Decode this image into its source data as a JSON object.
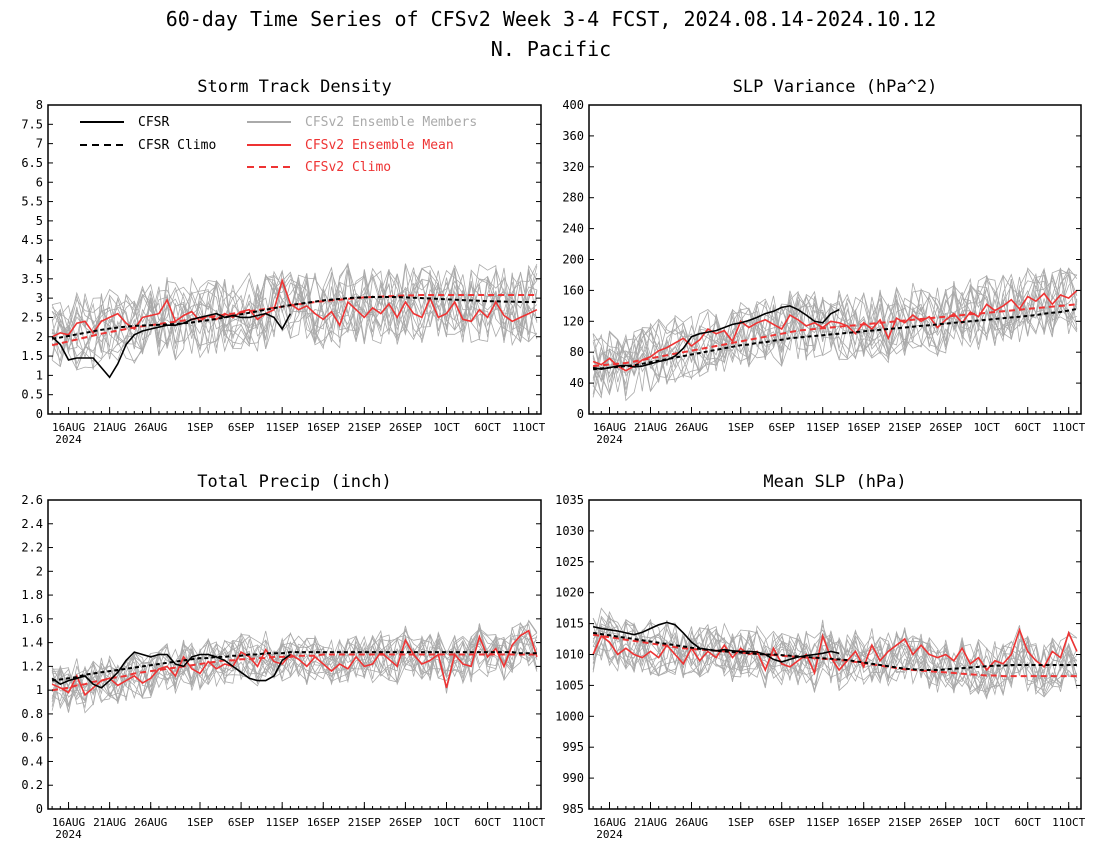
{
  "figure": {
    "title_line1": "60-day Time Series of CFSv2 Week 3-4 FCST, 2024.08.14-2024.10.12",
    "title_line2": "N. Pacific"
  },
  "legend": {
    "cfsr": "CFSR",
    "cfsr_climo": "CFSR Climo",
    "members": "CFSv2 Ensemble Members",
    "ens_mean": "CFSv2 Ensemble Mean",
    "cfsv2_climo": "CFSv2 Climo"
  },
  "colors": {
    "cfsr": "#000000",
    "members": "#aaaaaa",
    "ens_mean": "#ee3333",
    "cfsv2_climo": "#ee3333"
  },
  "x_axis": {
    "labels": [
      "16AUG",
      "21AUG",
      "26AUG",
      "1SEP",
      "6SEP",
      "11SEP",
      "16SEP",
      "21SEP",
      "26SEP",
      "1OCT",
      "6OCT",
      "11OCT"
    ],
    "label_days": [
      2,
      7,
      12,
      18,
      23,
      28,
      33,
      38,
      43,
      48,
      53,
      58
    ],
    "year": "2024",
    "start_date": "2024-08-14",
    "end_date": "2024-10-12"
  },
  "chart_data": [
    {
      "type": "line",
      "title": "Storm Track Density",
      "ylim": [
        0,
        8
      ],
      "yticks": [
        "0",
        "0.5",
        "1",
        "1.5",
        "2",
        "2.5",
        "3",
        "3.5",
        "4",
        "4.5",
        "5",
        "5.5",
        "6",
        "6.5",
        "7",
        "7.5",
        "8"
      ],
      "ytick_values": [
        0,
        0.5,
        1,
        1.5,
        2,
        2.5,
        3,
        3.5,
        4,
        4.5,
        5,
        5.5,
        6,
        6.5,
        7,
        7.5,
        8
      ],
      "cfsr": [
        2.0,
        1.8,
        1.4,
        1.45,
        1.45,
        1.45,
        1.2,
        0.95,
        1.3,
        1.8,
        2.05,
        2.15,
        2.2,
        2.25,
        2.3,
        2.3,
        2.35,
        2.45,
        2.5,
        2.55,
        2.6,
        2.5,
        2.55,
        2.5,
        2.5,
        2.55,
        2.6,
        2.5,
        2.2,
        2.6
      ],
      "cfsr_climo": [
        1.95,
        1.98,
        2.02,
        2.06,
        2.1,
        2.14,
        2.18,
        2.21,
        2.24,
        2.26,
        2.28,
        2.29,
        2.3,
        2.31,
        2.32,
        2.33,
        2.35,
        2.37,
        2.4,
        2.43,
        2.46,
        2.5,
        2.54,
        2.58,
        2.62,
        2.66,
        2.7,
        2.74,
        2.78,
        2.82,
        2.85,
        2.88,
        2.91,
        2.94,
        2.96,
        2.98,
        3.0,
        3.01,
        3.02,
        3.03,
        3.03,
        3.03,
        3.03,
        3.02,
        3.01,
        3.0,
        2.99,
        2.98,
        2.97,
        2.96,
        2.95,
        2.94,
        2.93,
        2.92,
        2.92,
        2.91,
        2.91,
        2.9,
        2.9,
        2.9
      ],
      "cfsv2_climo": [
        1.78,
        1.83,
        1.88,
        1.93,
        1.98,
        2.03,
        2.08,
        2.12,
        2.16,
        2.2,
        2.24,
        2.27,
        2.3,
        2.33,
        2.36,
        2.39,
        2.42,
        2.45,
        2.48,
        2.51,
        2.54,
        2.57,
        2.6,
        2.63,
        2.66,
        2.69,
        2.72,
        2.75,
        2.78,
        2.81,
        2.84,
        2.87,
        2.9,
        2.92,
        2.94,
        2.96,
        2.98,
        3.0,
        3.02,
        3.03,
        3.04,
        3.05,
        3.06,
        3.07,
        3.07,
        3.08,
        3.08,
        3.08,
        3.08,
        3.08,
        3.08,
        3.08,
        3.08,
        3.08,
        3.08,
        3.08,
        3.08,
        3.08,
        3.08,
        3.08
      ],
      "ens_mean": [
        2.0,
        2.1,
        2.05,
        2.35,
        2.4,
        2.1,
        2.4,
        2.5,
        2.6,
        2.35,
        2.2,
        2.5,
        2.55,
        2.6,
        2.95,
        2.4,
        2.55,
        2.65,
        2.4,
        2.55,
        2.45,
        2.6,
        2.5,
        2.65,
        2.7,
        2.45,
        2.6,
        2.7,
        3.45,
        2.85,
        2.7,
        2.8,
        2.6,
        2.45,
        2.65,
        2.3,
        2.9,
        2.7,
        2.5,
        2.75,
        2.6,
        2.85,
        2.5,
        2.9,
        2.6,
        2.5,
        3.0,
        2.5,
        2.6,
        2.9,
        2.45,
        2.4,
        2.7,
        2.5,
        2.9,
        2.55,
        2.4,
        2.5,
        2.6,
        2.7
      ],
      "members_spread": 1.0
    },
    {
      "type": "line",
      "title": "SLP Variance (hPa^2)",
      "ylim": [
        0,
        400
      ],
      "yticks": [
        "0",
        "40",
        "80",
        "120",
        "160",
        "200",
        "240",
        "280",
        "320",
        "360",
        "400"
      ],
      "ytick_values": [
        0,
        40,
        80,
        120,
        160,
        200,
        240,
        280,
        320,
        360,
        400
      ],
      "cfsr": [
        60,
        58,
        60,
        62,
        63,
        61,
        62,
        65,
        68,
        70,
        75,
        85,
        100,
        104,
        106,
        108,
        112,
        116,
        118,
        121,
        125,
        130,
        133,
        138,
        140,
        135,
        128,
        120,
        118,
        130,
        135
      ],
      "cfsr_climo": [
        58,
        59,
        60,
        61,
        62,
        63,
        65,
        67,
        69,
        71,
        73,
        75,
        77,
        79,
        81,
        83,
        85,
        87,
        89,
        90,
        92,
        93,
        95,
        96,
        98,
        99,
        100,
        101,
        102,
        103,
        104,
        105,
        106,
        107,
        108,
        109,
        110,
        111,
        112,
        113,
        114,
        115,
        116,
        117,
        118,
        119,
        120,
        121,
        122,
        123,
        124,
        125,
        126,
        127,
        128,
        130,
        131,
        132,
        134,
        136
      ],
      "cfsv2_climo": [
        62,
        63,
        64,
        65,
        66,
        68,
        70,
        72,
        74,
        76,
        78,
        80,
        82,
        84,
        86,
        88,
        90,
        92,
        94,
        96,
        98,
        100,
        102,
        104,
        106,
        108,
        109,
        110,
        111,
        112,
        113,
        114,
        115,
        116,
        117,
        118,
        119,
        120,
        121,
        122,
        123,
        124,
        125,
        126,
        127,
        128,
        129,
        130,
        131,
        132,
        133,
        134,
        135,
        136,
        137,
        138,
        139,
        140,
        141,
        142
      ],
      "ens_mean": [
        68,
        64,
        72,
        62,
        56,
        62,
        70,
        74,
        82,
        86,
        92,
        98,
        88,
        96,
        110,
        104,
        108,
        94,
        120,
        112,
        118,
        122,
        116,
        110,
        128,
        122,
        114,
        118,
        112,
        120,
        118,
        114,
        104,
        118,
        110,
        122,
        98,
        124,
        118,
        128,
        120,
        126,
        112,
        122,
        130,
        118,
        132,
        126,
        142,
        134,
        140,
        148,
        136,
        152,
        146,
        156,
        142,
        154,
        150,
        160
      ],
      "members_spread": 45
    },
    {
      "type": "line",
      "title": "Total Precip (inch)",
      "ylim": [
        0,
        2.6
      ],
      "yticks": [
        "0",
        "0.2",
        "0.4",
        "0.6",
        "0.8",
        "1",
        "1.2",
        "1.4",
        "1.6",
        "1.8",
        "2",
        "2.2",
        "2.4",
        "2.6"
      ],
      "ytick_values": [
        0,
        0.2,
        0.4,
        0.6,
        0.8,
        1.0,
        1.2,
        1.4,
        1.6,
        1.8,
        2.0,
        2.2,
        2.4,
        2.6
      ],
      "cfsr": [
        1.1,
        1.05,
        1.08,
        1.1,
        1.12,
        1.05,
        1.02,
        1.08,
        1.15,
        1.25,
        1.32,
        1.3,
        1.28,
        1.3,
        1.3,
        1.22,
        1.2,
        1.28,
        1.3,
        1.3,
        1.28,
        1.25,
        1.2,
        1.15,
        1.1,
        1.08,
        1.08,
        1.12,
        1.25,
        1.3
      ],
      "cfsr_climo": [
        1.08,
        1.09,
        1.1,
        1.11,
        1.13,
        1.14,
        1.15,
        1.16,
        1.17,
        1.18,
        1.19,
        1.2,
        1.21,
        1.22,
        1.23,
        1.24,
        1.25,
        1.26,
        1.27,
        1.27,
        1.28,
        1.28,
        1.29,
        1.29,
        1.3,
        1.3,
        1.31,
        1.31,
        1.31,
        1.32,
        1.32,
        1.32,
        1.32,
        1.32,
        1.32,
        1.32,
        1.32,
        1.32,
        1.32,
        1.32,
        1.32,
        1.32,
        1.32,
        1.32,
        1.32,
        1.32,
        1.32,
        1.32,
        1.32,
        1.32,
        1.32,
        1.32,
        1.32,
        1.32,
        1.32,
        1.32,
        1.32,
        1.31,
        1.31,
        1.31
      ],
      "cfsv2_climo": [
        1.0,
        1.01,
        1.02,
        1.04,
        1.05,
        1.07,
        1.08,
        1.1,
        1.11,
        1.12,
        1.14,
        1.15,
        1.16,
        1.17,
        1.18,
        1.19,
        1.2,
        1.21,
        1.22,
        1.23,
        1.24,
        1.25,
        1.25,
        1.26,
        1.26,
        1.27,
        1.27,
        1.28,
        1.28,
        1.28,
        1.29,
        1.29,
        1.29,
        1.3,
        1.3,
        1.3,
        1.3,
        1.3,
        1.3,
        1.3,
        1.3,
        1.3,
        1.3,
        1.3,
        1.3,
        1.3,
        1.3,
        1.3,
        1.3,
        1.3,
        1.3,
        1.3,
        1.3,
        1.3,
        1.3,
        1.3,
        1.3,
        1.3,
        1.3,
        1.3
      ],
      "ens_mean": [
        1.05,
        1.02,
        0.98,
        1.12,
        0.96,
        1.02,
        1.08,
        1.1,
        1.04,
        1.08,
        1.12,
        1.06,
        1.1,
        1.18,
        1.2,
        1.12,
        1.28,
        1.18,
        1.14,
        1.24,
        1.18,
        1.22,
        1.2,
        1.32,
        1.28,
        1.2,
        1.34,
        1.24,
        1.22,
        1.3,
        1.26,
        1.2,
        1.28,
        1.22,
        1.16,
        1.22,
        1.18,
        1.28,
        1.2,
        1.22,
        1.32,
        1.26,
        1.2,
        1.42,
        1.3,
        1.22,
        1.25,
        1.3,
        1.02,
        1.3,
        1.22,
        1.2,
        1.45,
        1.28,
        1.35,
        1.2,
        1.38,
        1.46,
        1.5,
        1.28
      ],
      "members_spread": 0.2
    },
    {
      "type": "line",
      "title": "Mean SLP (hPa)",
      "ylim": [
        985,
        1035
      ],
      "yticks": [
        "985",
        "990",
        "995",
        "1000",
        "1005",
        "1010",
        "1015",
        "1020",
        "1025",
        "1030",
        "1035"
      ],
      "ytick_values": [
        985,
        990,
        995,
        1000,
        1005,
        1010,
        1015,
        1020,
        1025,
        1030,
        1035
      ],
      "cfsr": [
        1014.5,
        1014.2,
        1014.0,
        1013.8,
        1013.5,
        1013.2,
        1013.6,
        1014.2,
        1014.8,
        1015.2,
        1014.8,
        1013.5,
        1012.0,
        1011.0,
        1010.8,
        1010.6,
        1010.8,
        1010.6,
        1010.5,
        1010.5,
        1010.4,
        1010.0,
        1009.2,
        1008.8,
        1009.2,
        1009.6,
        1009.8,
        1010.0,
        1010.2,
        1010.5,
        1010.2
      ],
      "cfsr_climo": [
        1013.5,
        1013.3,
        1013.1,
        1012.9,
        1012.7,
        1012.5,
        1012.3,
        1012.1,
        1011.9,
        1011.7,
        1011.5,
        1011.3,
        1011.1,
        1010.9,
        1010.8,
        1010.6,
        1010.5,
        1010.4,
        1010.3,
        1010.2,
        1010.1,
        1010.0,
        1010.0,
        1009.9,
        1009.8,
        1009.7,
        1009.6,
        1009.5,
        1009.4,
        1009.3,
        1009.2,
        1009.1,
        1008.9,
        1008.7,
        1008.5,
        1008.3,
        1008.1,
        1007.9,
        1007.7,
        1007.6,
        1007.5,
        1007.5,
        1007.5,
        1007.6,
        1007.7,
        1007.8,
        1007.9,
        1008.0,
        1008.1,
        1008.2,
        1008.2,
        1008.3,
        1008.3,
        1008.3,
        1008.3,
        1008.3,
        1008.3,
        1008.3,
        1008.3,
        1008.3
      ],
      "cfsv2_climo": [
        1013.2,
        1013.0,
        1012.8,
        1012.6,
        1012.4,
        1012.2,
        1012.0,
        1011.8,
        1011.6,
        1011.4,
        1011.2,
        1011.0,
        1010.9,
        1010.8,
        1010.7,
        1010.6,
        1010.5,
        1010.4,
        1010.3,
        1010.2,
        1010.1,
        1010.0,
        1009.9,
        1009.8,
        1009.7,
        1009.6,
        1009.5,
        1009.4,
        1009.3,
        1009.2,
        1009.1,
        1009.0,
        1008.8,
        1008.6,
        1008.4,
        1008.2,
        1008.0,
        1007.8,
        1007.6,
        1007.5,
        1007.4,
        1007.3,
        1007.2,
        1007.1,
        1007.0,
        1006.9,
        1006.8,
        1006.7,
        1006.6,
        1006.6,
        1006.5,
        1006.5,
        1006.5,
        1006.5,
        1006.5,
        1006.5,
        1006.5,
        1006.5,
        1006.5,
        1006.5
      ],
      "ens_mean": [
        1010.0,
        1013.0,
        1012.0,
        1010.0,
        1011.0,
        1010.0,
        1009.5,
        1010.5,
        1009.5,
        1011.5,
        1010.0,
        1008.5,
        1011.0,
        1009.0,
        1010.5,
        1009.5,
        1011.5,
        1009.5,
        1011.0,
        1010.0,
        1010.5,
        1007.5,
        1011.0,
        1008.5,
        1008.0,
        1009.0,
        1010.0,
        1007.0,
        1013.0,
        1009.5,
        1007.5,
        1009.0,
        1010.5,
        1008.0,
        1011.5,
        1009.0,
        1010.5,
        1011.5,
        1012.5,
        1010.0,
        1011.5,
        1010.0,
        1009.5,
        1010.0,
        1009.0,
        1011.0,
        1008.5,
        1009.5,
        1007.5,
        1009.0,
        1008.5,
        1010.0,
        1014.0,
        1010.5,
        1009.0,
        1008.0,
        1010.5,
        1009.5,
        1013.5,
        1010.5
      ],
      "members_spread": 4.5
    }
  ]
}
